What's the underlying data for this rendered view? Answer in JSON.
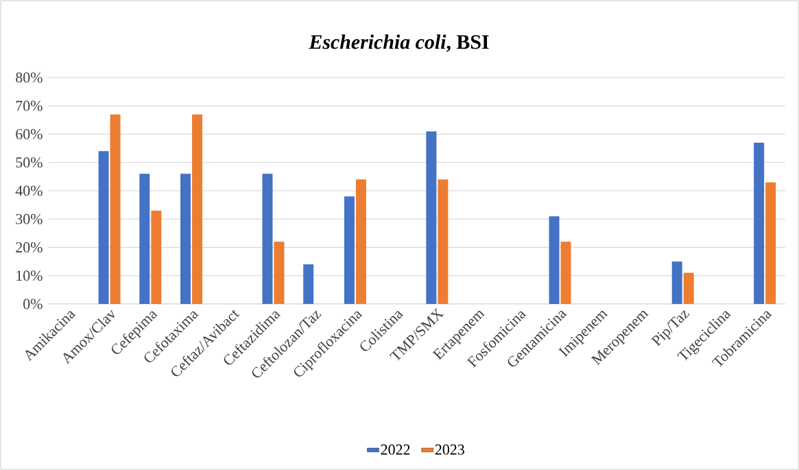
{
  "chart_data": {
    "type": "bar",
    "title": "*Escherichia coli*, BSI",
    "categories": [
      "Amikacina",
      "Amox/Clav",
      "Cefepima",
      "Cefotaxima",
      "Ceftaz/Avibact",
      "Ceftazidima",
      "Ceftolozan/Taz",
      "Ciprofloxacina",
      "Colistina",
      "TMP/SMX",
      "Ertapenem",
      "Fosfomicina",
      "Gentamicina",
      "Imipenem",
      "Meropenem",
      "Pip/Taz",
      "Tigeciclina",
      "Tobramicina"
    ],
    "series": [
      {
        "name": "2022",
        "color": "#4472c4",
        "values": [
          0,
          54,
          46,
          46,
          0,
          46,
          14,
          38,
          0,
          61,
          0,
          0,
          31,
          0,
          0,
          15,
          0,
          57
        ]
      },
      {
        "name": "2023",
        "color": "#ed7d31",
        "values": [
          0,
          67,
          33,
          67,
          0,
          22,
          0,
          44,
          0,
          44,
          0,
          0,
          22,
          0,
          0,
          11,
          0,
          43
        ]
      }
    ],
    "ylim": [
      0,
      80
    ],
    "yticks": [
      {
        "value": 0,
        "label": "0%"
      },
      {
        "value": 10,
        "label": "10%"
      },
      {
        "value": 20,
        "label": "20%"
      },
      {
        "value": 30,
        "label": "30%"
      },
      {
        "value": 40,
        "label": "40%"
      },
      {
        "value": 50,
        "label": "50%"
      },
      {
        "value": 60,
        "label": "60%"
      },
      {
        "value": 70,
        "label": "70%"
      },
      {
        "value": 80,
        "label": "80%"
      }
    ],
    "grid": "y",
    "legend": "bottom"
  }
}
